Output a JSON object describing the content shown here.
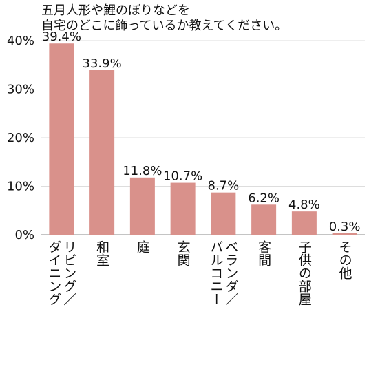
{
  "chart_data": {
    "type": "bar",
    "title_lines": [
      "五月人形や鯉のぼりなどを",
      "自宅のどこに飾っているか教えてください。"
    ],
    "categories": [
      "リビング／ダイニング",
      "和室",
      "庭",
      "玄関",
      "ベランダ／バルコニー",
      "客間",
      "子供の部屋",
      "その他"
    ],
    "category_lines": [
      [
        "リビング／",
        "ダイニング"
      ],
      [
        "和室"
      ],
      [
        "庭"
      ],
      [
        "玄関"
      ],
      [
        "ベランダ／",
        "バルコニー"
      ],
      [
        "客間"
      ],
      [
        "子供の部屋"
      ],
      [
        "その他"
      ]
    ],
    "values": [
      39.4,
      33.9,
      11.8,
      10.7,
      8.7,
      6.2,
      4.8,
      0.3
    ],
    "value_labels": [
      "39.4%",
      "33.9%",
      "11.8%",
      "10.7%",
      "8.7%",
      "6.2%",
      "4.8%",
      "0.3%"
    ],
    "ylim": [
      0,
      40
    ],
    "yticks": [
      "0%",
      "10%",
      "20%",
      "30%",
      "40%"
    ],
    "ytick_values": [
      0,
      10,
      20,
      30,
      40
    ],
    "grid": true,
    "colors": {
      "bar": "#d9918b",
      "grid": "#dddddd",
      "axis": "#888888"
    }
  }
}
